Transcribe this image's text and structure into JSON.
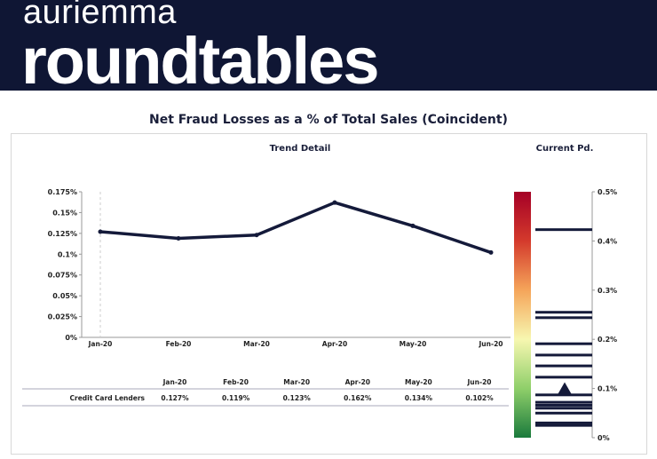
{
  "header": {
    "brand_top": "auriemma",
    "brand_bottom": "roundtables"
  },
  "title": "Net Fraud Losses as a % of Total Sales (Coincident)",
  "chart_data": [
    {
      "type": "line",
      "subtitle": "Trend Detail",
      "categories": [
        "Jan-20",
        "Feb-20",
        "Mar-20",
        "Apr-20",
        "May-20",
        "Jun-20"
      ],
      "series": [
        {
          "name": "Credit Card Lenders",
          "values": [
            0.127,
            0.119,
            0.123,
            0.162,
            0.134,
            0.102
          ]
        }
      ],
      "ylim": [
        0,
        0.175
      ],
      "yticks": [
        "0%",
        "0.025%",
        "0.05%",
        "0.075%",
        "0.1%",
        "0.125%",
        "0.15%",
        "0.175%"
      ],
      "grid": false,
      "color": "#141a3a"
    },
    {
      "type": "bar",
      "subtitle": "Current Pd.",
      "ylim": [
        0,
        0.5
      ],
      "yticks": [
        "0%",
        "0.1%",
        "0.2%",
        "0.3%",
        "0.4%",
        "0.5%"
      ],
      "peer_values": [
        0.423,
        0.255,
        0.244,
        0.191,
        0.168,
        0.146,
        0.123,
        0.087,
        0.072,
        0.066,
        0.06,
        0.05,
        0.03,
        0.025
      ],
      "current_value": 0.102,
      "gradient_colors": [
        "#1a7a3c",
        "#8fcf6a",
        "#f7f7b0",
        "#f5a55a",
        "#d43a2c",
        "#a50026"
      ]
    }
  ],
  "table": {
    "columns": [
      "Jan-20",
      "Feb-20",
      "Mar-20",
      "Apr-20",
      "May-20",
      "Jun-20"
    ],
    "rows": [
      {
        "label": "Credit Card Lenders",
        "values": [
          "0.127%",
          "0.119%",
          "0.123%",
          "0.162%",
          "0.134%",
          "0.102%"
        ]
      }
    ]
  }
}
